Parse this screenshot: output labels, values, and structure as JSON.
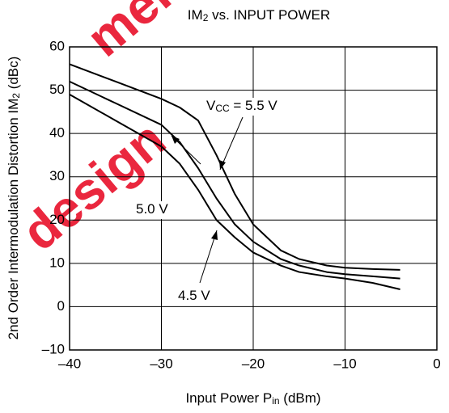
{
  "chart_data": {
    "type": "line",
    "title": [
      "IM",
      "2",
      " vs. INPUT POWER"
    ],
    "x_label": [
      "Input Power  P",
      "in",
      " (dBm)"
    ],
    "y_label": [
      "2nd Order Intermodulation Distortion  IM",
      "2",
      " (dBc)"
    ],
    "x": [
      -40,
      -35,
      -30,
      -28,
      -26,
      -24,
      -22,
      -20,
      -17,
      -15,
      -12,
      -10,
      -7,
      -4
    ],
    "series": [
      {
        "color": "#000000",
        "values": [
          56,
          52,
          48,
          46,
          43,
          35,
          26,
          19,
          13,
          11,
          9.5,
          9,
          8.7,
          8.5
        ]
      },
      {
        "color": "#000000",
        "values": [
          52,
          47,
          42,
          38,
          32,
          25,
          19,
          15,
          11,
          9.5,
          8,
          7.5,
          7,
          6.5
        ]
      },
      {
        "color": "#000000",
        "values": [
          49,
          43,
          37,
          33,
          27,
          20,
          16,
          12.5,
          9.5,
          8,
          7,
          6.5,
          5.5,
          4
        ]
      }
    ],
    "annotations": [
      [
        "V",
        "CC",
        " = 5.5 V"
      ],
      [
        "5.0 V"
      ],
      [
        "4.5 V"
      ]
    ],
    "watermark": [
      "ment",
      "design"
    ],
    "xlim": [
      -40,
      0
    ],
    "xticks": [
      {
        "value": -40,
        "label": "–40"
      },
      {
        "value": -30,
        "label": "–30"
      },
      {
        "value": -20,
        "label": "–20"
      },
      {
        "value": -10,
        "label": "–10"
      },
      0
    ],
    "ylim": [
      -10,
      60
    ],
    "yticks": [
      {
        "value": -10,
        "label": "–10"
      },
      0,
      10,
      20,
      30,
      40,
      50,
      60
    ],
    "grid": true
  }
}
